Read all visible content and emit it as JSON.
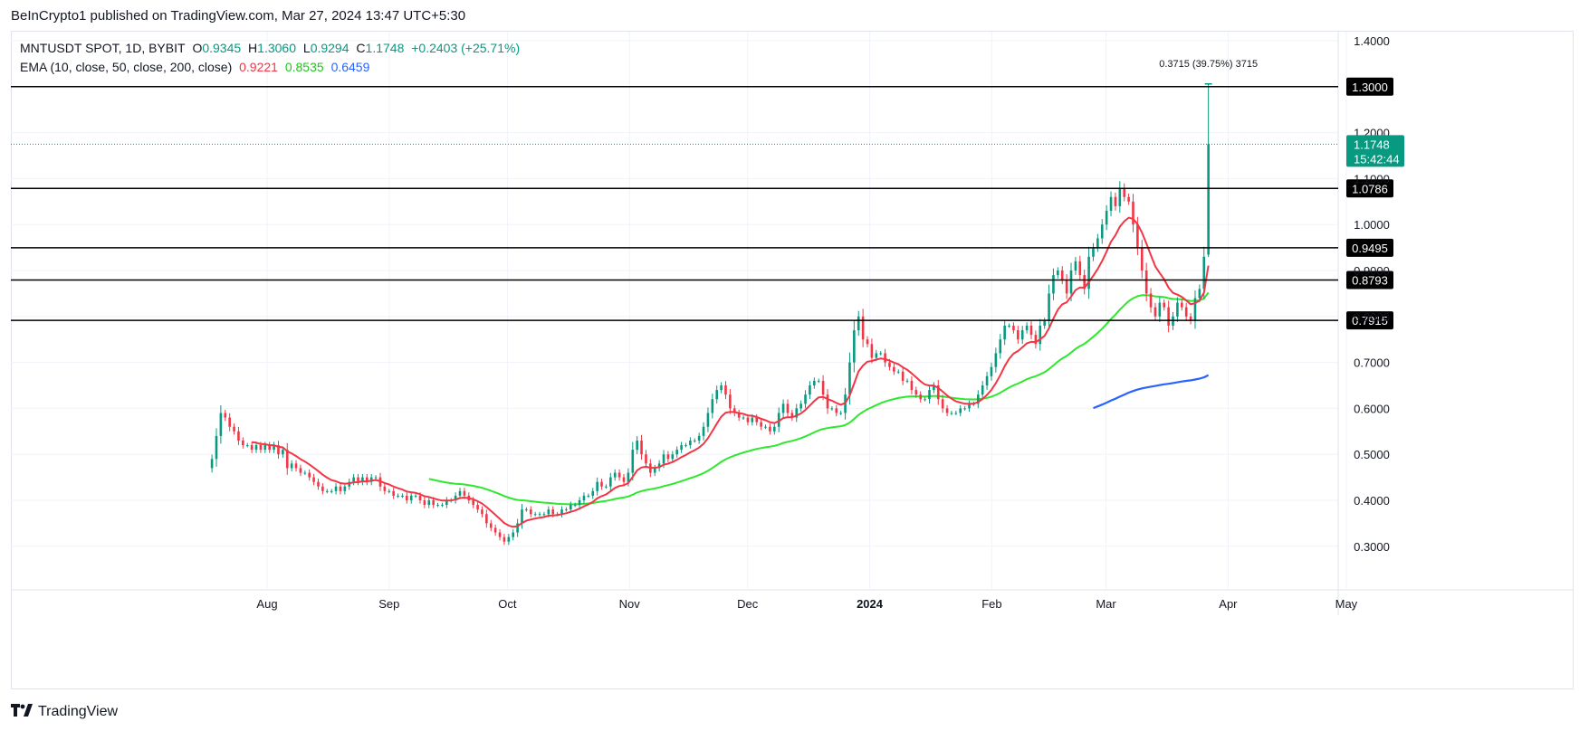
{
  "header": {
    "published_by": "BeInCrypto1 published on TradingView.com, Mar 27, 2024 13:47 UTC+5:30"
  },
  "legend": {
    "symbol": "MNTUSDT SPOT, 1D, BYBIT",
    "o_label": "O",
    "o_value": "0.9345",
    "h_label": "H",
    "h_value": "1.3060",
    "l_label": "L",
    "l_value": "0.9294",
    "c_label": "C",
    "c_value": "1.1748",
    "change": "+0.2403 (+25.71%)",
    "ema_label": "EMA (10, close, 50, close, 200, close)",
    "ema10_value": "0.9221",
    "ema50_value": "0.8535",
    "ema200_value": "0.6459"
  },
  "colors": {
    "up": "#089981",
    "down": "#f23645",
    "ema10": "#f23645",
    "ema50": "#2ee82e",
    "ema200": "#2962ff",
    "level_line": "#000000",
    "axis_text": "#131722",
    "price_badge": "#089981"
  },
  "footer": {
    "brand_icon": "tradingview-logo-icon",
    "brand_name": "TradingView"
  },
  "chart_data": {
    "type": "candlestick",
    "title": "MNTUSDT SPOT, 1D, BYBIT",
    "ylim": [
      0.2,
      1.45
    ],
    "y_ticks": [
      "0.3000",
      "0.4000",
      "0.5000",
      "0.6000",
      "0.7000",
      "0.8000",
      "0.9000",
      "1.0000",
      "1.1000",
      "1.2000",
      "1.4000"
    ],
    "x_ticks": [
      "Aug",
      "Sep",
      "Oct",
      "Nov",
      "Dec",
      "2024",
      "Feb",
      "Mar",
      "Apr",
      "May"
    ],
    "x_range": [
      "2023-07-01",
      "2024-05-06"
    ],
    "grid": true,
    "horizontal_levels": [
      {
        "label": "1.3000",
        "value": 1.3
      },
      {
        "label": "1.0786",
        "value": 1.0786
      },
      {
        "label": "0.9495",
        "value": 0.9495
      },
      {
        "label": "0.8793",
        "value": 0.8793
      },
      {
        "label": "0.7915",
        "value": 0.7915
      }
    ],
    "last_price": {
      "value": 1.1748,
      "label": "1.1748",
      "countdown": "15:42:44"
    },
    "measure_label": "0.3715 (39.75%) 3715",
    "candle_dates": [
      "2023-07-18",
      "2024-03-27"
    ],
    "candle_closes": [
      0.49,
      0.54,
      0.59,
      0.58,
      0.56,
      0.55,
      0.53,
      0.52,
      0.52,
      0.51,
      0.52,
      0.51,
      0.52,
      0.51,
      0.52,
      0.5,
      0.51,
      0.47,
      0.48,
      0.47,
      0.46,
      0.46,
      0.45,
      0.44,
      0.43,
      0.42,
      0.42,
      0.42,
      0.43,
      0.42,
      0.43,
      0.44,
      0.45,
      0.44,
      0.45,
      0.44,
      0.45,
      0.45,
      0.43,
      0.42,
      0.42,
      0.41,
      0.41,
      0.41,
      0.4,
      0.41,
      0.41,
      0.4,
      0.39,
      0.4,
      0.39,
      0.39,
      0.39,
      0.4,
      0.4,
      0.41,
      0.42,
      0.41,
      0.4,
      0.39,
      0.38,
      0.37,
      0.35,
      0.34,
      0.33,
      0.32,
      0.31,
      0.32,
      0.33,
      0.35,
      0.38,
      0.38,
      0.37,
      0.37,
      0.37,
      0.37,
      0.38,
      0.37,
      0.37,
      0.38,
      0.38,
      0.39,
      0.39,
      0.4,
      0.41,
      0.41,
      0.42,
      0.44,
      0.43,
      0.43,
      0.45,
      0.46,
      0.45,
      0.44,
      0.46,
      0.51,
      0.53,
      0.5,
      0.48,
      0.46,
      0.47,
      0.48,
      0.5,
      0.49,
      0.5,
      0.51,
      0.52,
      0.52,
      0.53,
      0.53,
      0.54,
      0.56,
      0.59,
      0.62,
      0.64,
      0.65,
      0.63,
      0.6,
      0.59,
      0.58,
      0.58,
      0.57,
      0.58,
      0.57,
      0.56,
      0.56,
      0.55,
      0.56,
      0.59,
      0.61,
      0.59,
      0.58,
      0.6,
      0.61,
      0.63,
      0.65,
      0.66,
      0.66,
      0.63,
      0.6,
      0.6,
      0.59,
      0.59,
      0.63,
      0.7,
      0.77,
      0.8,
      0.75,
      0.74,
      0.71,
      0.72,
      0.72,
      0.7,
      0.69,
      0.68,
      0.68,
      0.66,
      0.66,
      0.64,
      0.63,
      0.62,
      0.62,
      0.64,
      0.65,
      0.62,
      0.6,
      0.59,
      0.59,
      0.59,
      0.6,
      0.6,
      0.61,
      0.61,
      0.63,
      0.65,
      0.67,
      0.69,
      0.72,
      0.75,
      0.78,
      0.78,
      0.77,
      0.75,
      0.77,
      0.78,
      0.76,
      0.74,
      0.78,
      0.79,
      0.85,
      0.89,
      0.9,
      0.88,
      0.85,
      0.9,
      0.92,
      0.89,
      0.86,
      0.93,
      0.95,
      0.97,
      1.0,
      1.03,
      1.06,
      1.04,
      1.08,
      1.06,
      1.05,
      1.0,
      0.95,
      0.9,
      0.85,
      0.82,
      0.8,
      0.83,
      0.82,
      0.78,
      0.8,
      0.83,
      0.82,
      0.8,
      0.79,
      0.84,
      0.86,
      0.93,
      1.1748
    ]
  }
}
